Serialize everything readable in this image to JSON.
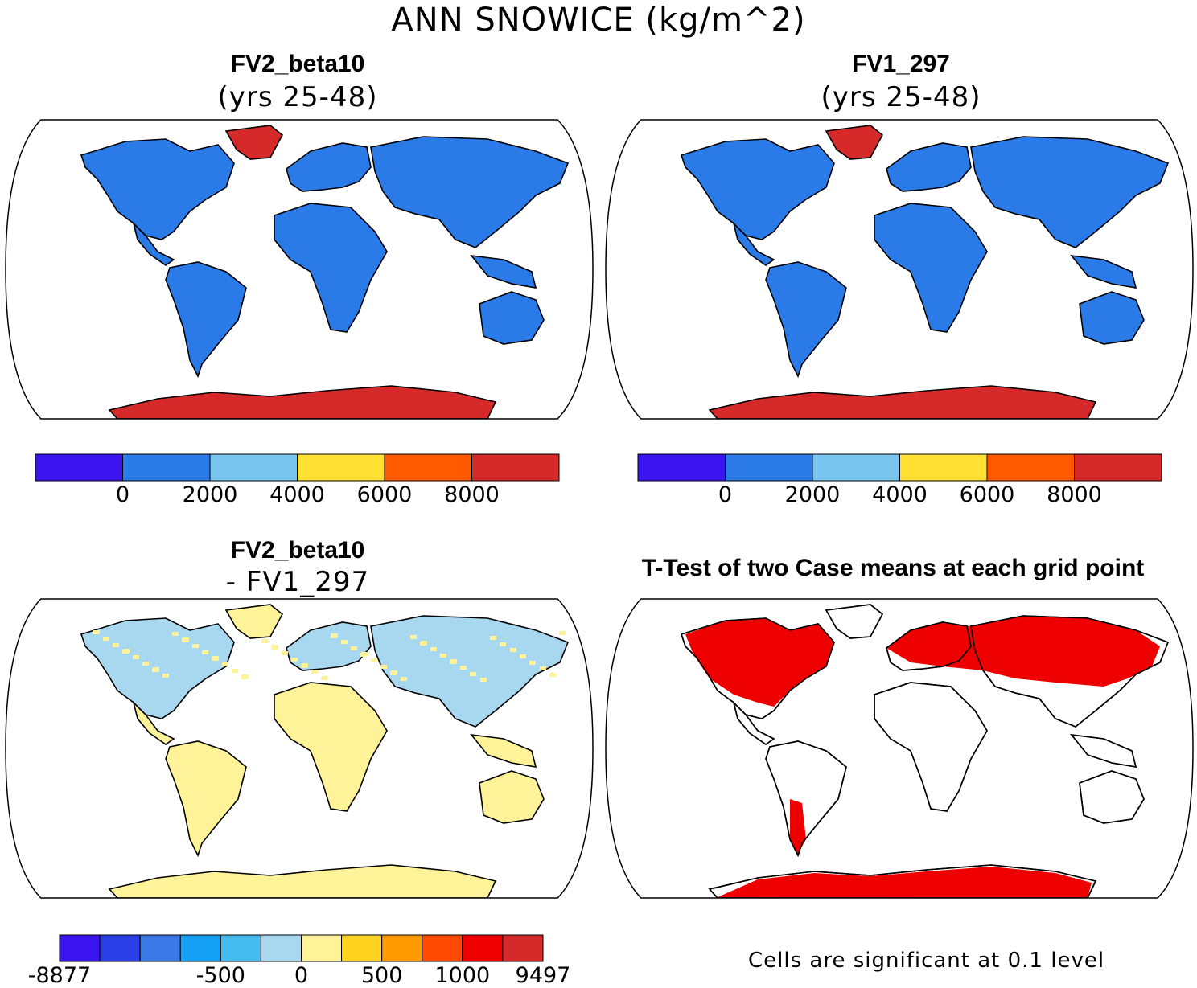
{
  "title": "ANN SNOWICE (kg/m^2)",
  "panels": {
    "top_left": {
      "title": "FV2_beta10",
      "subtitle": "(yrs 25-48)"
    },
    "top_right": {
      "title": "FV1_297",
      "subtitle": "(yrs 25-48)"
    },
    "bottom_left": {
      "title": "FV2_beta10",
      "subtitle": "- FV1_297"
    },
    "bottom_right": {
      "title": "T-Test of two Case means at each grid point",
      "note": "Cells are significant at 0.1 level"
    }
  },
  "colorbars": {
    "case": {
      "colors": [
        "#3b14f0",
        "#2a7ae8",
        "#78c6f0",
        "#ffe033",
        "#ff5a00",
        "#d62a2a"
      ],
      "ticks": [
        "0",
        "2000",
        "4000",
        "6000",
        "8000"
      ]
    },
    "diff": {
      "colors": [
        "#3b14f0",
        "#2a3fe8",
        "#3a78e8",
        "#14a0f5",
        "#44bcf0",
        "#a8d8f0",
        "#fff399",
        "#ffd21f",
        "#ff9a00",
        "#ff4a00",
        "#ee0000",
        "#d62a2a"
      ],
      "ticks": [
        "-8877",
        "-500",
        "0",
        "500",
        "1000",
        "9497"
      ]
    }
  },
  "map_fill": {
    "land": "#2a7ae8",
    "ice": "#d62a2a",
    "diff_land": "#fff399",
    "diff_snow": "#a8d8f0",
    "signif": "#ee0000"
  }
}
